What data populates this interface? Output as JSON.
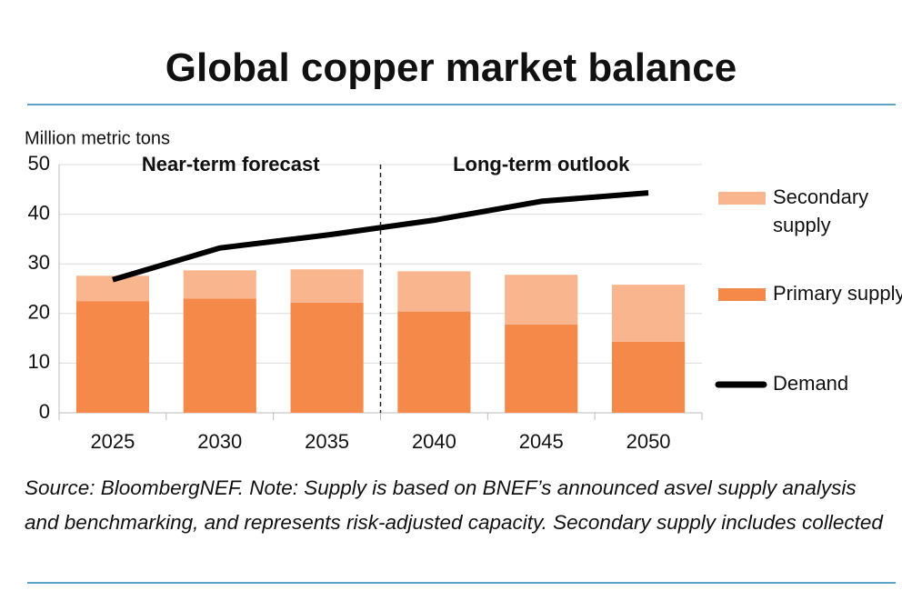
{
  "chart_data": {
    "type": "stacked_bar_line",
    "title": "Global copper market balance",
    "y_axis_label": "Million metric tons",
    "categories": [
      "2025",
      "2030",
      "2035",
      "2040",
      "2045",
      "2050"
    ],
    "series": [
      {
        "name": "Primary supply",
        "color": "#f4894a",
        "values": [
          22.5,
          23,
          22.2,
          20.4,
          17.8,
          14.3
        ]
      },
      {
        "name": "Secondary supply",
        "color": "#f8b58e",
        "values": [
          5.1,
          5.7,
          6.7,
          8.1,
          10.0,
          11.5
        ]
      },
      {
        "name": "Demand",
        "color": "#000000",
        "kind": "line",
        "values": [
          26.8,
          33.2,
          35.8,
          38.8,
          42.6,
          44.3
        ]
      }
    ],
    "annotations": [
      "Near-term forecast",
      "Long-term outlook"
    ],
    "ylim": [
      0,
      50
    ],
    "yticks": [
      0,
      10,
      20,
      30,
      40,
      50
    ],
    "grid": true,
    "source": "Source: BloombergNEF. Note: Supply is based on BNEF’s announced asvel supply analysis and benchmarking, and represents risk-adjusted capacity. Secondary supply includes collected"
  }
}
